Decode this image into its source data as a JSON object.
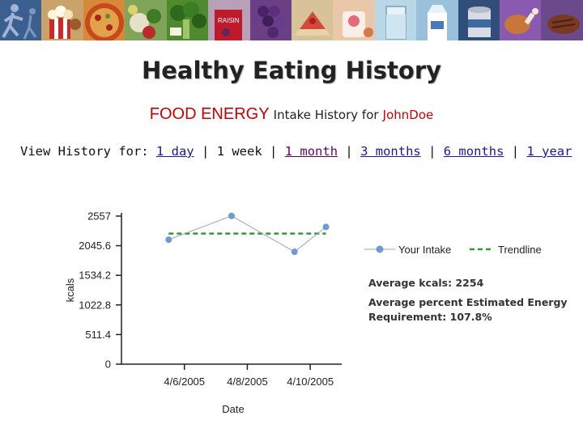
{
  "page": {
    "title": "Healthy Eating History",
    "subtitle": {
      "metric": "FOOD ENERGY",
      "middle": "Intake History for",
      "user": "JohnDoe"
    },
    "history_nav": {
      "prefix": "View History for:",
      "separator": "|",
      "options": [
        {
          "label": "1 day",
          "state": "link"
        },
        {
          "label": "1 week",
          "state": "current"
        },
        {
          "label": "1 month",
          "state": "visited"
        },
        {
          "label": "3 months",
          "state": "link"
        },
        {
          "label": "6 months",
          "state": "link"
        },
        {
          "label": "1 year",
          "state": "link"
        }
      ]
    },
    "legend": {
      "intake_label": "Your Intake",
      "trend_label": "Trendline"
    },
    "stats": {
      "avg_kcals_label": "Average kcals:",
      "avg_kcals_value": "2254",
      "avg_percent_label_line1": "Average percent Estimated Energy",
      "avg_percent_label_line2": "Requirement:",
      "avg_percent_value": "107.8%"
    },
    "banner": {
      "tiles": [
        "runner-tile",
        "popcorn-tile",
        "pizza-tile",
        "vegetables-tile",
        "broccoli-tile",
        "raisins-tile",
        "grapes-tile",
        "cake-tile",
        "yogurt-tile",
        "glass-of-water-tile",
        "milk-carton-tile",
        "can-tile",
        "chicken-leg-tile",
        "steak-tile"
      ],
      "raisin_box_text": "RAISIN"
    }
  },
  "chart_data": {
    "type": "line",
    "ylabel": "kcals",
    "xlabel": "Date",
    "ylim": [
      0,
      2557
    ],
    "yticks": [
      "2557",
      "2045.6",
      "1534.2",
      "1022.8",
      "511.4",
      "0"
    ],
    "ytick_values": [
      2557,
      2045.6,
      1534.2,
      1022.8,
      511.4,
      0
    ],
    "xtick_labels": [
      "4/6/2005",
      "4/8/2005",
      "4/10/2005"
    ],
    "x_range": [
      0,
      7
    ],
    "xtick_positions": [
      2,
      4,
      6
    ],
    "series": [
      {
        "name": "Your Intake",
        "color": "#6f9ad6",
        "line_color": "#9aa3b5",
        "x": [
          1.5,
          3.5,
          5.5,
          6.5
        ],
        "y": [
          2150,
          2560,
          1940,
          2370
        ]
      }
    ],
    "trendline": {
      "name": "Trendline",
      "color": "#339933",
      "x": [
        1.5,
        6.5
      ],
      "y": [
        2254,
        2254
      ]
    },
    "grid": false
  }
}
